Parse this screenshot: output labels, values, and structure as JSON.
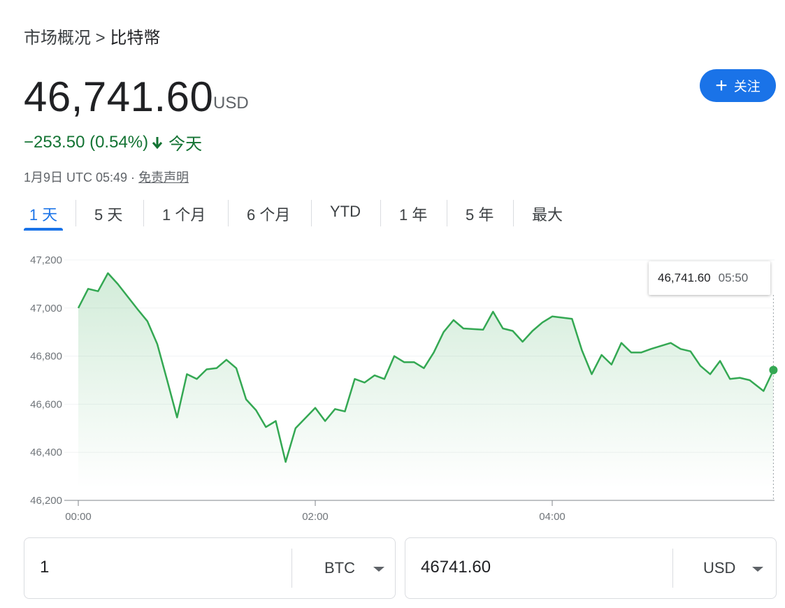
{
  "breadcrumb": {
    "parent": "市场概况",
    "separator": ">",
    "current": "比特幣"
  },
  "quote": {
    "price": "46,741.60",
    "currency": "USD",
    "change": "−253.50 (0.54%)",
    "change_period": "今天",
    "timestamp": "1月9日 UTC 05:49 · ",
    "disclaimer": "免责声明",
    "change_color": "#137333"
  },
  "follow_button": {
    "label": "关注",
    "icon": "plus-icon",
    "color": "#1a73e8"
  },
  "tabs": [
    {
      "label": "1 天",
      "active": true
    },
    {
      "label": "5 天",
      "active": false
    },
    {
      "label": "1 个月",
      "active": false
    },
    {
      "label": "6 个月",
      "active": false
    },
    {
      "label": "YTD",
      "active": false
    },
    {
      "label": "1 年",
      "active": false
    },
    {
      "label": "5 年",
      "active": false
    },
    {
      "label": "最大",
      "active": false
    }
  ],
  "tooltip": {
    "value": "46,741.60",
    "time": "05:50"
  },
  "chart_data": {
    "type": "area",
    "title": "",
    "xlabel": "",
    "ylabel": "",
    "line_color": "#34a853",
    "x_ticks": [
      "00:00",
      "02:00",
      "04:00"
    ],
    "y_ticks": [
      "47,200",
      "47,000",
      "46,800",
      "46,600",
      "46,400",
      "46,200"
    ],
    "y_tick_values": [
      47200,
      47000,
      46800,
      46600,
      46400,
      46200
    ],
    "ylim": [
      46200,
      47200
    ],
    "xlim_minutes": [
      0,
      352
    ],
    "grid": true,
    "points": [
      [
        0,
        47000
      ],
      [
        5,
        47080
      ],
      [
        10,
        47070
      ],
      [
        15,
        47145
      ],
      [
        20,
        47100
      ],
      [
        30,
        46995
      ],
      [
        35,
        46945
      ],
      [
        40,
        46850
      ],
      [
        45,
        46700
      ],
      [
        50,
        46545
      ],
      [
        55,
        46725
      ],
      [
        60,
        46705
      ],
      [
        65,
        46745
      ],
      [
        70,
        46750
      ],
      [
        75,
        46785
      ],
      [
        80,
        46750
      ],
      [
        85,
        46620
      ],
      [
        90,
        46575
      ],
      [
        95,
        46505
      ],
      [
        100,
        46530
      ],
      [
        105,
        46360
      ],
      [
        110,
        46500
      ],
      [
        120,
        46585
      ],
      [
        125,
        46530
      ],
      [
        130,
        46580
      ],
      [
        135,
        46570
      ],
      [
        140,
        46705
      ],
      [
        145,
        46690
      ],
      [
        150,
        46720
      ],
      [
        155,
        46705
      ],
      [
        160,
        46800
      ],
      [
        165,
        46775
      ],
      [
        170,
        46775
      ],
      [
        175,
        46750
      ],
      [
        180,
        46815
      ],
      [
        185,
        46900
      ],
      [
        190,
        46950
      ],
      [
        195,
        46915
      ],
      [
        205,
        46910
      ],
      [
        210,
        46985
      ],
      [
        215,
        46915
      ],
      [
        220,
        46905
      ],
      [
        225,
        46860
      ],
      [
        230,
        46905
      ],
      [
        235,
        46940
      ],
      [
        240,
        46965
      ],
      [
        250,
        46955
      ],
      [
        255,
        46825
      ],
      [
        260,
        46725
      ],
      [
        265,
        46805
      ],
      [
        270,
        46765
      ],
      [
        275,
        46855
      ],
      [
        280,
        46815
      ],
      [
        285,
        46815
      ],
      [
        290,
        46830
      ],
      [
        300,
        46855
      ],
      [
        305,
        46830
      ],
      [
        310,
        46820
      ],
      [
        315,
        46760
      ],
      [
        320,
        46725
      ],
      [
        325,
        46780
      ],
      [
        330,
        46705
      ],
      [
        335,
        46710
      ],
      [
        340,
        46700
      ],
      [
        347,
        46655
      ],
      [
        352,
        46742
      ]
    ]
  },
  "converter": {
    "from_amount": "1",
    "from_unit": "BTC",
    "to_amount": "46741.60",
    "to_unit": "USD"
  }
}
